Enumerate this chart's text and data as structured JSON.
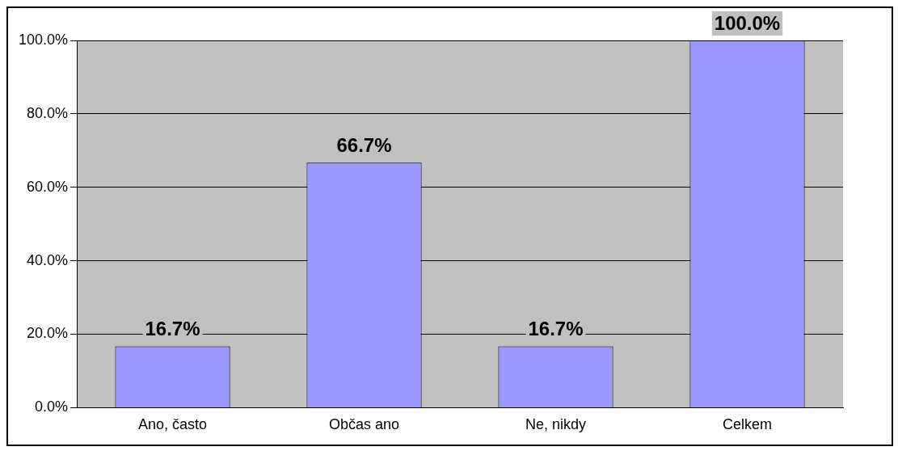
{
  "chart_data": {
    "type": "bar",
    "categories": [
      "Ano, často",
      "Občas ano",
      "Ne, nikdy",
      "Celkem"
    ],
    "values": [
      16.7,
      66.7,
      16.7,
      100
    ],
    "value_labels": [
      "16.7%",
      "66.7%",
      "16.7%",
      "100.0%"
    ],
    "color": "#9999ff",
    "ylim": [
      0,
      100
    ],
    "yticks": [
      {
        "value": 0,
        "label": "0.0%"
      },
      {
        "value": 20,
        "label": "20.0%"
      },
      {
        "value": 40,
        "label": "40.0%"
      },
      {
        "value": 60,
        "label": "60.0%"
      },
      {
        "value": 80,
        "label": "80.0%"
      },
      {
        "value": 100,
        "label": "100.0%"
      }
    ],
    "grid": "y",
    "legend": false
  }
}
